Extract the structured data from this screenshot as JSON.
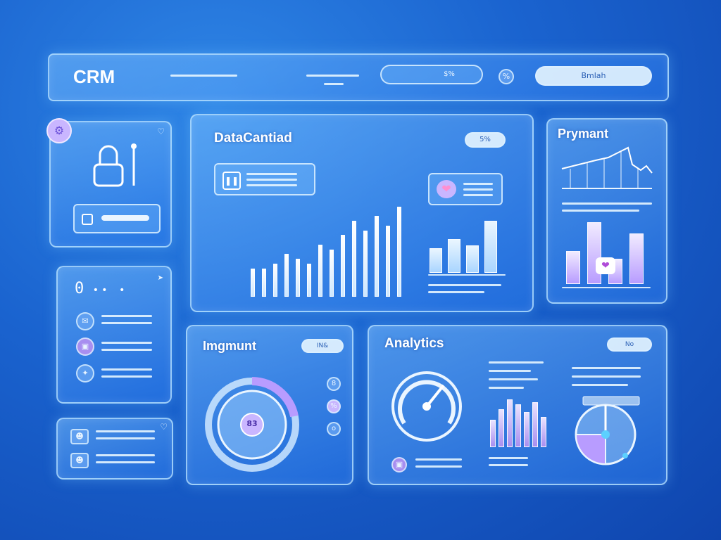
{
  "topbar": {
    "brand": "CRM",
    "search_value": "$%",
    "button_label": "Bmlah"
  },
  "profile_panel": {
    "badge_icon": "gear-icon",
    "lock_icon": "lock-icon"
  },
  "data_panel": {
    "title": "DataCantiad",
    "pill_label": "5%",
    "chart_data": {
      "type": "bar",
      "values": [
        30,
        30,
        35,
        45,
        40,
        35,
        55,
        50,
        65,
        80,
        70,
        85,
        75,
        95
      ]
    },
    "mini_chart_data": {
      "type": "bar",
      "values": [
        40,
        55,
        45,
        85
      ]
    }
  },
  "payment_panel": {
    "title": "Prymant",
    "chart_data": {
      "type": "bar",
      "values": [
        45,
        85,
        35,
        70
      ]
    }
  },
  "list_panel": {
    "code": "0",
    "items": [
      {
        "icon": "message-icon"
      },
      {
        "icon": "card-icon"
      },
      {
        "icon": "twitter-icon"
      }
    ]
  },
  "contacts_panel": {
    "items": [
      {
        "icon": "user-icon"
      },
      {
        "icon": "user-icon"
      }
    ]
  },
  "engagement_panel": {
    "title": "Imgmunt",
    "pill_label": "IN&",
    "donut_value": "83",
    "side_icons": [
      "8",
      "%",
      "o"
    ]
  },
  "analytics_panel": {
    "title": "Analytics",
    "pill_label": "No",
    "chart_data": {
      "type": "bar",
      "values": [
        55,
        75,
        95,
        85,
        70,
        90,
        60
      ]
    }
  },
  "colors": {
    "accent_purple": "#b89cff",
    "panel_border": "#cfe8ff",
    "background": "#1a63cf"
  }
}
